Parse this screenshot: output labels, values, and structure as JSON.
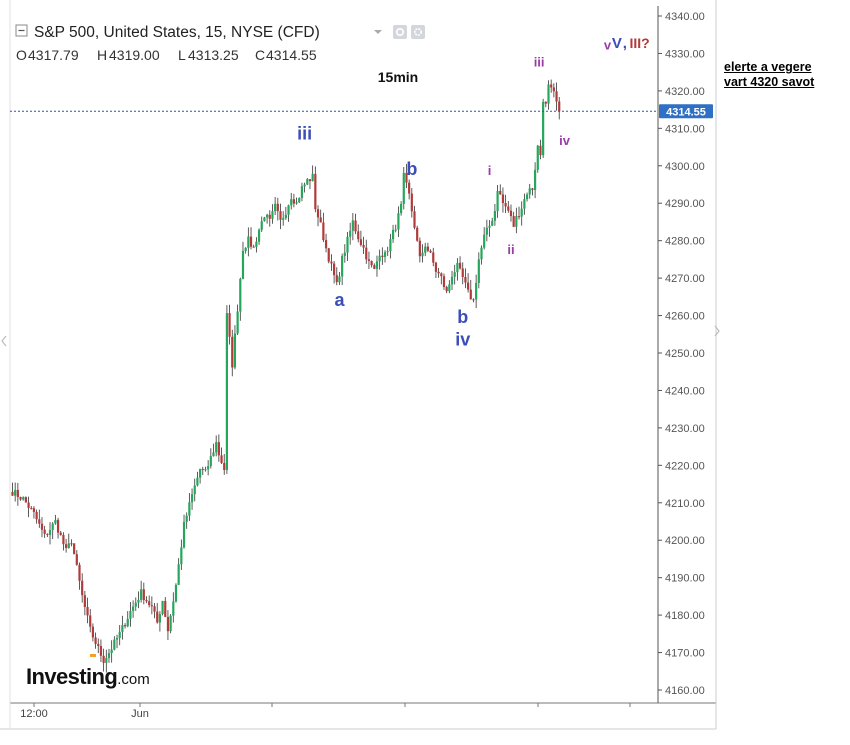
{
  "header": {
    "title": "S&P 500, United States, 15, NYSE (CFD)",
    "ohlc": [
      {
        "key": "O",
        "value": "4317.79"
      },
      {
        "key": "H",
        "value": "4319.00"
      },
      {
        "key": "L",
        "value": "4313.25"
      },
      {
        "key": "C",
        "value": "4314.55"
      }
    ]
  },
  "side_note": {
    "line1": "elerte a vegere",
    "line2": "vart 4320  savot"
  },
  "logo": {
    "brand": "Investing",
    "suffix": ".com"
  },
  "colors": {
    "up": "#26a65b",
    "down": "#b23a3a",
    "wick": "#333333",
    "current_line": "#2b55a8",
    "price_tag_bg": "#2f6fc4"
  },
  "chart_data": {
    "type": "candlestick",
    "title": "15min",
    "ylim": [
      4155,
      4345
    ],
    "y_ticks": [
      4160,
      4170,
      4180,
      4190,
      4200,
      4210,
      4220,
      4230,
      4240,
      4250,
      4260,
      4270,
      4280,
      4290,
      4300,
      4310,
      4320,
      4330,
      4340
    ],
    "y_tick_labels": [
      "4160.00",
      "4170.00",
      "4180.00",
      "4190.00",
      "4200.00",
      "4210.00",
      "4220.00",
      "4230.00",
      "4240.00",
      "4250.00",
      "4260.00",
      "4270.00",
      "4280.00",
      "4290.00",
      "4300.00",
      "4310.00",
      "4320.00",
      "4330.00",
      "4340.00"
    ],
    "x_ticks": [
      {
        "label": "12:00"
      },
      {
        "label": "Jun"
      },
      {
        "label": ""
      },
      {
        "label": ""
      },
      {
        "label": ""
      },
      {
        "label": ""
      }
    ],
    "current_price": 4314.55,
    "current_price_label": "4314.55",
    "grid": false,
    "waypoints": [
      [
        0,
        4213
      ],
      [
        4,
        4211
      ],
      [
        8,
        4207
      ],
      [
        12,
        4201
      ],
      [
        16,
        4205
      ],
      [
        20,
        4197
      ],
      [
        22,
        4200
      ],
      [
        26,
        4185
      ],
      [
        29,
        4176
      ],
      [
        32,
        4171
      ],
      [
        34,
        4168
      ],
      [
        36,
        4170
      ],
      [
        40,
        4175
      ],
      [
        44,
        4181
      ],
      [
        48,
        4186
      ],
      [
        52,
        4182
      ],
      [
        54,
        4178
      ],
      [
        56,
        4184
      ],
      [
        58,
        4176
      ],
      [
        61,
        4188
      ],
      [
        64,
        4204
      ],
      [
        67,
        4212
      ],
      [
        70,
        4219
      ],
      [
        72,
        4218
      ],
      [
        74,
        4222
      ],
      [
        76,
        4226
      ],
      [
        77,
        4223
      ],
      [
        79,
        4219
      ],
      [
        80,
        4260
      ],
      [
        82,
        4247
      ],
      [
        84,
        4262
      ],
      [
        86,
        4278
      ],
      [
        88,
        4280
      ],
      [
        90,
        4278
      ],
      [
        92,
        4283
      ],
      [
        94,
        4287
      ],
      [
        96,
        4285
      ],
      [
        98,
        4289
      ],
      [
        100,
        4285
      ],
      [
        102,
        4288
      ],
      [
        104,
        4292
      ],
      [
        106,
        4290
      ],
      [
        108,
        4294
      ],
      [
        110,
        4296
      ],
      [
        112,
        4297
      ],
      [
        113,
        4289
      ],
      [
        115,
        4284
      ],
      [
        117,
        4278
      ],
      [
        119,
        4273
      ],
      [
        121,
        4268
      ],
      [
        123,
        4275
      ],
      [
        125,
        4280
      ],
      [
        127,
        4285
      ],
      [
        129,
        4281
      ],
      [
        131,
        4278
      ],
      [
        133,
        4274
      ],
      [
        135,
        4272
      ],
      [
        137,
        4277
      ],
      [
        139,
        4276
      ],
      [
        141,
        4280
      ],
      [
        143,
        4284
      ],
      [
        145,
        4289
      ],
      [
        146,
        4297
      ],
      [
        148,
        4292
      ],
      [
        150,
        4284
      ],
      [
        152,
        4275
      ],
      [
        154,
        4279
      ],
      [
        156,
        4276
      ],
      [
        158,
        4272
      ],
      [
        160,
        4270
      ],
      [
        162,
        4266
      ],
      [
        164,
        4271
      ],
      [
        166,
        4273
      ],
      [
        168,
        4270
      ],
      [
        170,
        4266
      ],
      [
        172,
        4264
      ],
      [
        174,
        4275
      ],
      [
        176,
        4281
      ],
      [
        178,
        4284
      ],
      [
        180,
        4288
      ],
      [
        181,
        4294
      ],
      [
        183,
        4290
      ],
      [
        185,
        4288
      ],
      [
        187,
        4284
      ],
      [
        188,
        4286
      ],
      [
        190,
        4289
      ],
      [
        192,
        4293
      ],
      [
        194,
        4294
      ],
      [
        196,
        4305
      ],
      [
        197,
        4303
      ],
      [
        198,
        4318
      ],
      [
        199,
        4316
      ],
      [
        200,
        4321
      ],
      [
        202,
        4319
      ],
      [
        204,
        4314.55
      ]
    ],
    "annotations": [
      {
        "text": "iii",
        "x": 109,
        "y": 4307,
        "color": "#3a4db8",
        "size": 18
      },
      {
        "text": "a",
        "x": 122,
        "y": 4262.5,
        "color": "#3a4db8",
        "size": 18
      },
      {
        "text": "b",
        "x": 149,
        "y": 4297.5,
        "color": "#3a4db8",
        "size": 18
      },
      {
        "text": "b",
        "x": 168,
        "y": 4258,
        "color": "#3a4db8",
        "size": 18
      },
      {
        "text": "iv",
        "x": 168,
        "y": 4252,
        "color": "#3a4db8",
        "size": 18
      },
      {
        "text": "i",
        "x": 178,
        "y": 4297.5,
        "color": "#9b3aa8",
        "size": 13
      },
      {
        "text": "ii",
        "x": 186,
        "y": 4276.5,
        "color": "#9b3aa8",
        "size": 13
      },
      {
        "text": "iii",
        "x": 196.5,
        "y": 4326.5,
        "color": "#9b3aa8",
        "size": 13
      },
      {
        "text": "iv",
        "x": 206,
        "y": 4305.5,
        "color": "#9b3aa8",
        "size": 13
      },
      {
        "text": "v",
        "x": 222,
        "y": 4331,
        "color": "#9b3aa8",
        "size": 13
      },
      {
        "text": "V",
        "x": 225.5,
        "y": 4331.5,
        "color": "#3a4db8",
        "size": 15
      },
      {
        "text": ",",
        "x": 228.5,
        "y": 4331.5,
        "color": "#3a4db8",
        "size": 15
      },
      {
        "text": "III?",
        "x": 234,
        "y": 4331.5,
        "color": "#b23a3a",
        "size": 14
      }
    ]
  }
}
